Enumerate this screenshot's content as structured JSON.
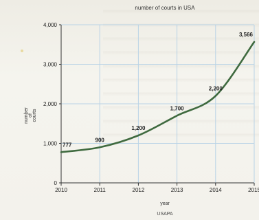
{
  "chart_data": {
    "type": "line",
    "title": "number of courts in USA",
    "xlabel": "year",
    "ylabel": [
      "number",
      "of",
      "courts"
    ],
    "source": "USAPA",
    "x": [
      "2010",
      "2011",
      "2012",
      "2013",
      "2014",
      "2015"
    ],
    "series": [
      {
        "values": [
          777,
          900,
          1200,
          1700,
          2200,
          3566
        ]
      }
    ],
    "data_labels": [
      "777",
      "900",
      "1,200",
      "1,700",
      "2,200",
      "3,566"
    ],
    "yticks": [
      0,
      1000,
      2000,
      3000,
      4000
    ],
    "ytick_labels": [
      "0",
      "1,000",
      "2,000",
      "3,000",
      "4,000"
    ],
    "ylim": [
      0,
      4000
    ],
    "grid": true,
    "line_color": "#3f6a3f",
    "grid_color": "#b9d3e6"
  }
}
